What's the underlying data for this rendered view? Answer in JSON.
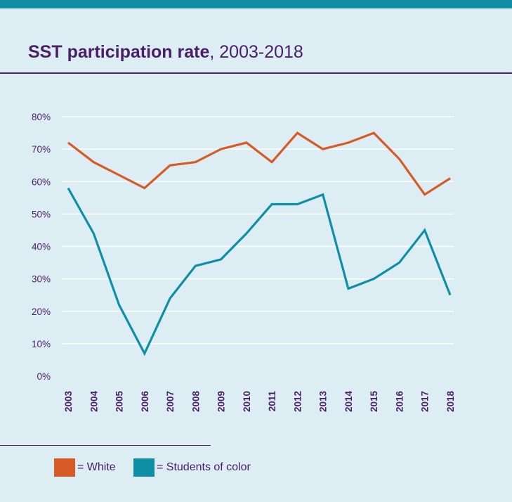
{
  "header": {
    "title_bold": "SST participation rate",
    "title_rest": ", 2003-2018"
  },
  "legend": [
    {
      "label": "= White",
      "color": "#d85a27"
    },
    {
      "label": "= Students of color",
      "color": "#0f8fa6"
    }
  ],
  "chart_data": {
    "type": "line",
    "x": [
      "2003",
      "2004",
      "2005",
      "2006",
      "2007",
      "2008",
      "2009",
      "2010",
      "2011",
      "2012",
      "2013",
      "2014",
      "2015",
      "2016",
      "2017",
      "2018"
    ],
    "y_ticks": [
      "0%",
      "10%",
      "20%",
      "30%",
      "40%",
      "50%",
      "60%",
      "70%",
      "80%"
    ],
    "ylim": [
      0,
      80
    ],
    "grid": true,
    "series": [
      {
        "name": "White",
        "color": "#d85a27",
        "values": [
          72,
          66,
          62,
          58,
          65,
          66,
          70,
          72,
          66,
          75,
          70,
          72,
          75,
          67,
          56,
          61
        ]
      },
      {
        "name": "Students of color",
        "color": "#0f8fa6",
        "values": [
          58,
          44,
          22,
          7,
          24,
          34,
          36,
          44,
          53,
          53,
          56,
          27,
          30,
          35,
          45,
          25
        ]
      }
    ]
  }
}
